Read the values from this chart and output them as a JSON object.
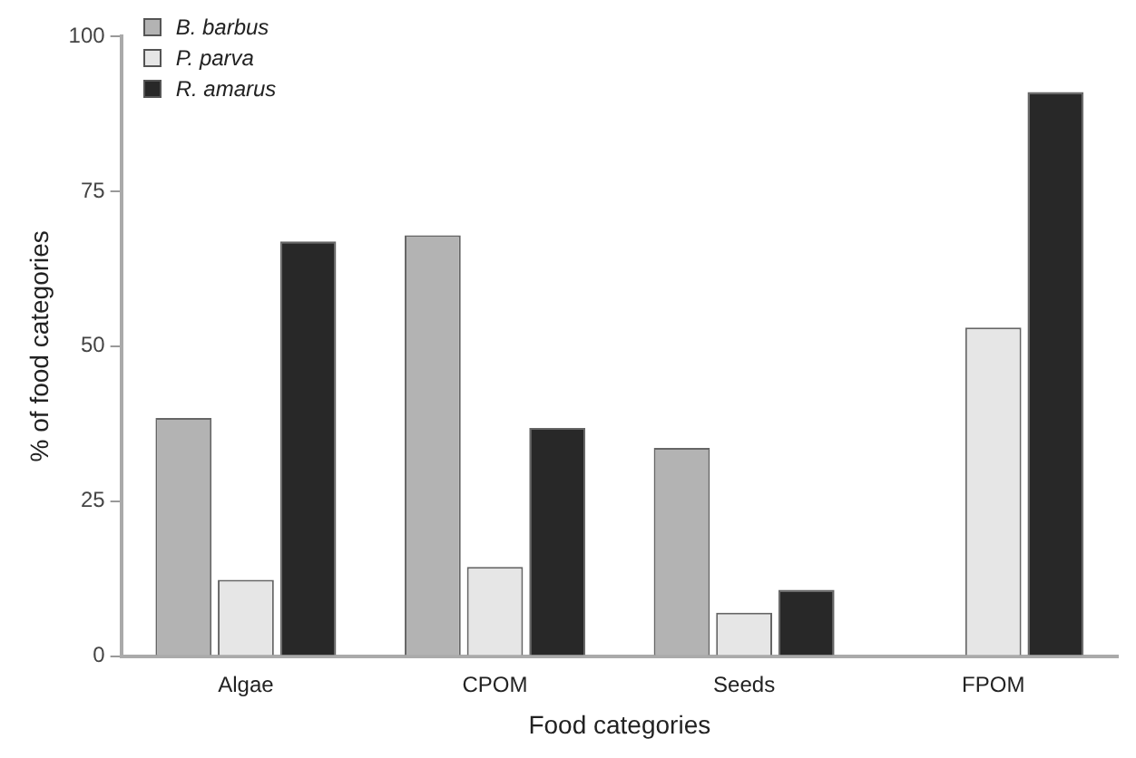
{
  "chart_data": {
    "type": "bar",
    "xlabel": "Food categories",
    "ylabel": "% of food categories",
    "categories": [
      "Algae",
      "CPOM",
      "Seeds",
      "FPOM"
    ],
    "series": [
      {
        "name": "B. barbus",
        "color": "#b3b3b3",
        "values": [
          38.4,
          67.9,
          33.6,
          0
        ]
      },
      {
        "name": "P. parva",
        "color": "#e6e6e6",
        "values": [
          12.3,
          14.4,
          7.0,
          53
        ]
      },
      {
        "name": "R. amarus",
        "color": "#282828",
        "values": [
          66.9,
          36.8,
          10.7,
          91
        ]
      }
    ],
    "ylim": [
      0,
      100
    ],
    "yticks": [
      0,
      25,
      50,
      75,
      100
    ],
    "grid": false,
    "legend": "top left"
  }
}
